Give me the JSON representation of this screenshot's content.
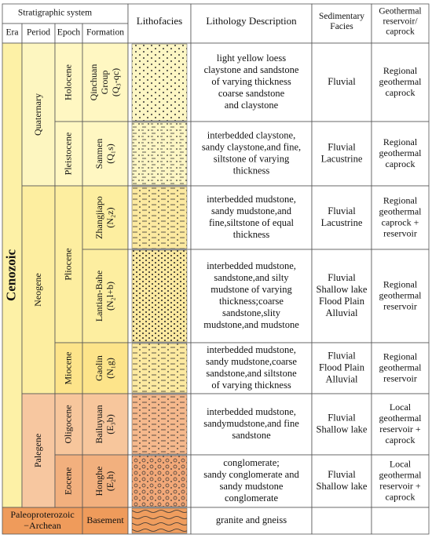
{
  "header": {
    "stratigraphic_system": "Stratigraphic system",
    "era": "Era",
    "period": "Period",
    "epoch": "Epoch",
    "formation": "Formation",
    "lithofacies": "Lithofacies",
    "lithology": "Lithology Description",
    "facies": [
      "Sedimentary",
      "Facies"
    ],
    "reservoir": [
      "Geothermal",
      "reservoir/",
      "caprock"
    ]
  },
  "eras": [
    {
      "label": [
        "Cenozoic"
      ]
    },
    {
      "label": [
        "Paleoproterozoic",
        "−Archean"
      ]
    }
  ],
  "periods": [
    "Quaternary",
    "Neogene",
    "Palegene"
  ],
  "epochs": [
    "Holocene",
    "Pleistocene",
    "Pliocene",
    "Miocene",
    "Oligocene",
    "Eocene"
  ],
  "rows": [
    {
      "formation": [
        "Qinchuan",
        "Group",
        "(Q₃-qc)"
      ],
      "description": [
        "light yellow loess",
        "claystone and sandstone",
        "of varying thickness",
        "coarse sandstone",
        "and claystone"
      ],
      "facies": [
        "Fluvial"
      ],
      "reservoir": [
        "Regional",
        "geothermal",
        "caprock"
      ]
    },
    {
      "formation": [
        "Sanmen",
        "(Q₁s)"
      ],
      "description": [
        "interbedded claystone,",
        "sandy claystone,and fine,",
        "siltstone of varying",
        "thickness"
      ],
      "facies": [
        "Fluvial",
        "Lacustrine"
      ],
      "reservoir": [
        "Regional",
        "geothermal",
        "caprock"
      ]
    },
    {
      "formation": [
        "Zhangjiapo",
        "(N₂z)"
      ],
      "description": [
        "interbedded mudstone,",
        "sandy mudstone,and",
        "fine,siltstone of equal",
        "thickness"
      ],
      "facies": [
        "Fluvial",
        "Lacustrine"
      ],
      "reservoir": [
        "Regional",
        "geothermal",
        "caprock +",
        "reservoir"
      ]
    },
    {
      "formation": [
        "Lantian-Bahe",
        "(N₂l+b)"
      ],
      "description": [
        "interbedded mudstone,",
        "sandstone,and silty",
        "mudstone of varying",
        "thickness;coarse",
        "sandstone,slity",
        "mudstone,and mudstone"
      ],
      "facies": [
        "Fluvial",
        "Shallow lake",
        "Flood Plain",
        "Alluvial"
      ],
      "reservoir": [
        "Regional",
        "geothermal",
        "reservoir"
      ]
    },
    {
      "formation": [
        "Gaolin",
        "(N₁g)"
      ],
      "description": [
        "interbedded mudstone,",
        "sandy mudstone,coarse",
        "sandstone,and siltstone",
        "of varying thickness"
      ],
      "facies": [
        "Fluvial",
        "Flood Plain",
        "Alluvial"
      ],
      "reservoir": [
        "Regional",
        "geothermal",
        "reservoir"
      ]
    },
    {
      "formation": [
        "Bailuyuan",
        "(E₃b)"
      ],
      "description": [
        "interbedded mudstone,",
        "sandymudstone,and fine",
        "sandstone"
      ],
      "facies": [
        "Fluvial",
        "Shallow lake"
      ],
      "reservoir": [
        "Local",
        "geothermal",
        "reservoir +",
        "caprock"
      ]
    },
    {
      "formation": [
        "Honghe",
        "(E₂h)"
      ],
      "description": [
        "conglomerate;",
        "sandy conglomerate and",
        "sandy mudstone",
        "conglomerate"
      ],
      "facies": [
        "Fluvial",
        "Shallow lake"
      ],
      "reservoir": [
        "Local",
        "geothermal",
        "reservoir +",
        "caprock"
      ]
    },
    {
      "formation": [
        "Basement"
      ],
      "description": [
        "granite and gneiss"
      ]
    }
  ]
}
